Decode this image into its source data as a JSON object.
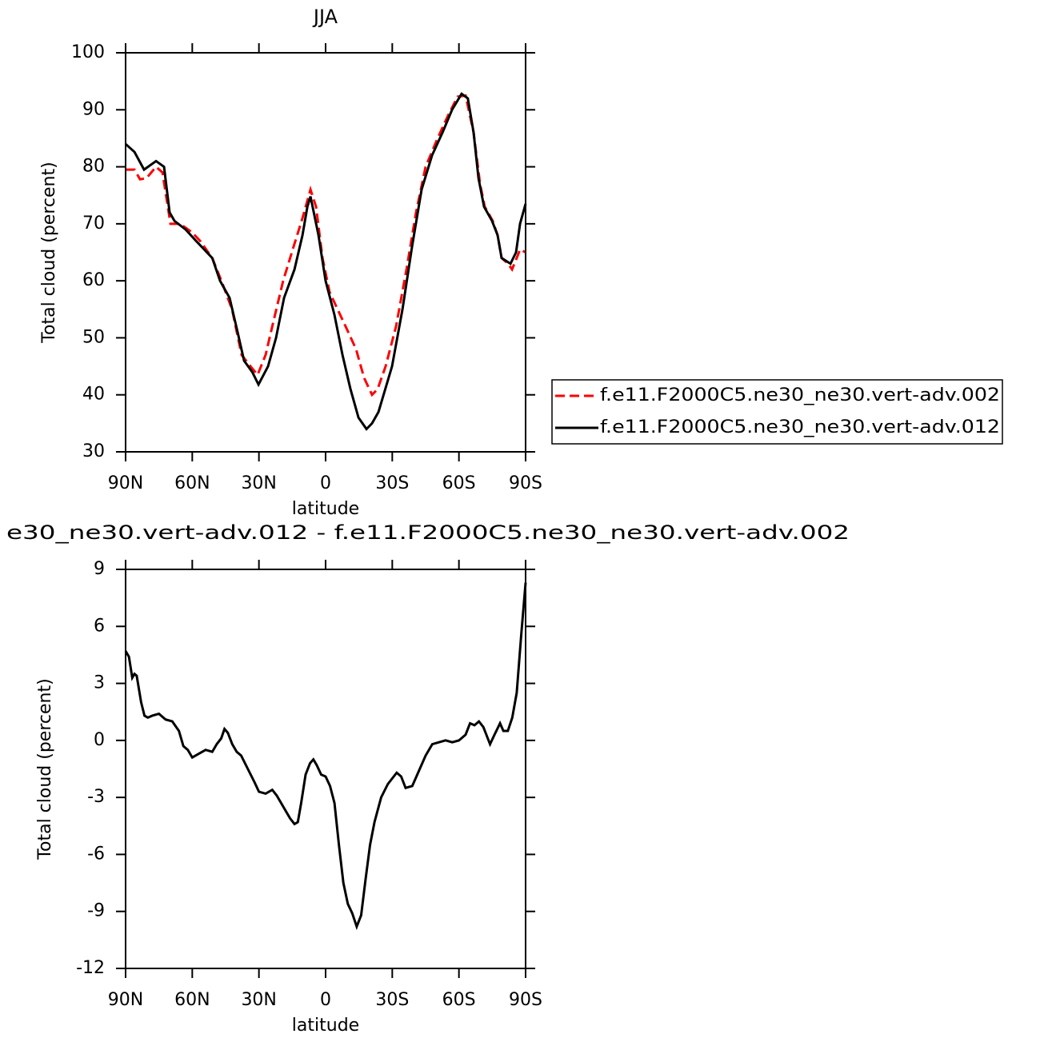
{
  "chart_data": [
    {
      "type": "line",
      "title": "JJA",
      "xlabel": "latitude",
      "ylabel": "Total cloud (percent)",
      "xlim": [
        90,
        -90
      ],
      "xticks": [
        {
          "value": 90,
          "label": "90N"
        },
        {
          "value": 60,
          "label": "60N"
        },
        {
          "value": 30,
          "label": "30N"
        },
        0,
        {
          "value": -30,
          "label": "30S"
        },
        {
          "value": -60,
          "label": "60S"
        },
        {
          "value": -90,
          "label": "90S"
        }
      ],
      "ylim": [
        30,
        100
      ],
      "yticks": [
        30,
        40,
        50,
        60,
        70,
        80,
        90,
        100
      ],
      "legend_position": "right",
      "series": [
        {
          "name": "f.e11.F2000C5.ne30_ne30.vert-adv.002",
          "color": "#ff0000",
          "line_style": "dashed",
          "x": [
            90,
            86,
            83.5,
            80.6,
            76.3,
            73.4,
            69.8,
            65.5,
            60.1,
            56.5,
            51,
            46.4,
            42.1,
            37.8,
            33.8,
            30.6,
            27,
            23.4,
            19.1,
            14.4,
            10.4,
            6.8,
            4.3,
            1.4,
            -1.8,
            -5.4,
            -9,
            -13.7,
            -17.3,
            -20.9,
            -23.4,
            -27,
            -31.7,
            -36.4,
            -40.7,
            -45,
            -50.4,
            -55.1,
            -59.4,
            -63,
            -66.6,
            -69.5,
            -71.6,
            -75.2,
            -77.4,
            -79.2,
            -82.1,
            -83.9,
            -86,
            -87.5,
            -90
          ],
          "values": [
            79.5,
            79.5,
            77.8,
            78,
            80,
            79,
            70,
            70,
            68.5,
            67,
            64,
            59.5,
            55,
            47,
            45,
            43.5,
            47,
            53,
            60,
            66,
            71,
            76,
            73,
            64,
            58,
            55,
            52,
            48,
            43,
            40,
            41,
            45,
            52,
            62,
            72,
            80,
            85,
            89,
            92.3,
            92.5,
            86,
            77,
            73,
            70.5,
            68,
            64,
            63,
            62,
            64,
            65.5,
            65
          ]
        },
        {
          "name": "f.e11.F2000C5.ne30_ne30.vert-adv.012",
          "color": "#000000",
          "line_style": "solid",
          "x": [
            90,
            86,
            81.7,
            76.3,
            72.7,
            70.2,
            68,
            63,
            58.3,
            51,
            47.5,
            43.2,
            39.6,
            36.7,
            33,
            30.2,
            25.9,
            22.3,
            18.7,
            14,
            10.4,
            8.2,
            6.8,
            3.2,
            0,
            -4,
            -7.6,
            -11.2,
            -14.8,
            -18.4,
            -20.9,
            -23.8,
            -29.9,
            -34.6,
            -38.9,
            -43.2,
            -47.9,
            -52.6,
            -56.9,
            -61.2,
            -64,
            -66.6,
            -68.8,
            -71.3,
            -74.9,
            -77.4,
            -79.2,
            -83.2,
            -85.7,
            -87.5,
            -90
          ],
          "values": [
            84,
            82.6,
            79.5,
            81,
            80,
            72,
            70.5,
            69,
            67,
            64,
            60,
            57,
            51,
            46,
            44,
            41.8,
            45,
            50,
            57,
            62,
            68,
            73,
            74.8,
            68,
            60,
            54,
            47,
            41,
            36,
            34,
            35,
            37,
            45,
            55,
            66,
            76,
            82,
            86,
            90,
            92.8,
            92,
            86,
            78,
            73,
            70.5,
            68,
            64,
            63,
            65,
            70,
            73.5
          ]
        }
      ]
    },
    {
      "type": "line",
      "title": "e30_ne30.vert-adv.012 - f.e11.F2000C5.ne30_ne30.vert-adv.002",
      "xlabel": "latitude",
      "ylabel": "Total cloud (percent)",
      "xlim": [
        90,
        -90
      ],
      "xticks": [
        {
          "value": 90,
          "label": "90N"
        },
        {
          "value": 60,
          "label": "60N"
        },
        {
          "value": 30,
          "label": "30N"
        },
        0,
        {
          "value": -30,
          "label": "30S"
        },
        {
          "value": -60,
          "label": "60S"
        },
        {
          "value": -90,
          "label": "90S"
        }
      ],
      "ylim": [
        -12,
        9
      ],
      "yticks": [
        -12,
        -9,
        -6,
        -3,
        0,
        3,
        6,
        9
      ],
      "series": [
        {
          "color": "#000000",
          "line_style": "solid",
          "x": [
            90,
            88.5,
            87,
            86,
            85,
            83,
            81.5,
            80,
            78,
            75,
            72,
            69,
            66,
            64,
            62,
            60,
            57,
            54,
            51,
            49,
            47,
            45.5,
            44,
            42,
            40,
            38,
            35,
            32,
            30,
            27,
            24,
            22,
            19,
            16,
            14,
            12.5,
            11,
            9,
            7,
            5.5,
            4,
            2,
            0,
            -2,
            -4,
            -6,
            -8,
            -10,
            -12,
            -14,
            -16,
            -18,
            -20,
            -22,
            -25,
            -28,
            -30,
            -32,
            -34,
            -36,
            -39,
            -42,
            -45,
            -48,
            -51,
            -54,
            -57,
            -60,
            -63,
            -65,
            -67,
            -69,
            -71,
            -74,
            -76,
            -78.5,
            -80,
            -82,
            -84,
            -86,
            -88,
            -90
          ],
          "values": [
            4.7,
            4.4,
            3.3,
            3.5,
            3.4,
            2.0,
            1.3,
            1.2,
            1.3,
            1.4,
            1.1,
            1.0,
            0.5,
            -0.3,
            -0.5,
            -0.9,
            -0.7,
            -0.5,
            -0.6,
            -0.2,
            0.1,
            0.6,
            0.4,
            -0.2,
            -0.6,
            -0.8,
            -1.5,
            -2.2,
            -2.7,
            -2.8,
            -2.6,
            -2.9,
            -3.5,
            -4.1,
            -4.4,
            -4.3,
            -3.3,
            -1.8,
            -1.2,
            -1.0,
            -1.3,
            -1.8,
            -1.9,
            -2.4,
            -3.3,
            -5.5,
            -7.5,
            -8.6,
            -9.1,
            -9.8,
            -9.2,
            -7.3,
            -5.5,
            -4.3,
            -3.0,
            -2.3,
            -2.0,
            -1.7,
            -1.9,
            -2.5,
            -2.4,
            -1.6,
            -0.8,
            -0.2,
            -0.1,
            0,
            -0.1,
            0,
            0.3,
            0.9,
            0.8,
            1.0,
            0.7,
            -0.2,
            0.3,
            0.9,
            0.5,
            0.5,
            1.2,
            2.5,
            5.5,
            8.3
          ]
        }
      ]
    }
  ]
}
